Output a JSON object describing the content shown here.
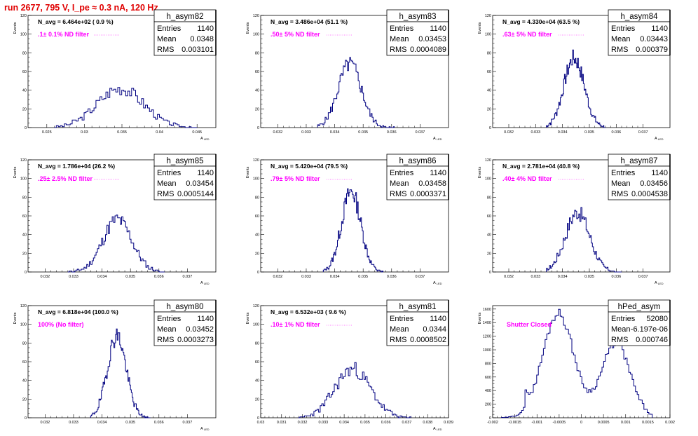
{
  "title": "run 2677,   795 V, I_pe ≈ 0.3 nA, 120 Hz",
  "chart_data": [
    {
      "type": "bar",
      "name": "h_asym82",
      "stats": {
        "entries": "1140",
        "mean": "0.0348",
        "rms": "0.003101"
      },
      "stat_labels": [
        "Entries",
        "Mean",
        "RMS"
      ],
      "navg": "N_avg = 6.464e+02 ( 0.9 %)",
      "filter": ".1± 0.1% ND filter",
      "xlabel": "A_LED",
      "ylabel": "Events",
      "xlim": [
        0.0225,
        0.0475
      ],
      "ylim": [
        0,
        120
      ],
      "xticks": [
        0.025,
        0.03,
        0.035,
        0.04,
        0.045
      ],
      "xtick_labels": [
        "0.025",
        "0.03",
        "0.035",
        "0.04",
        "0.045"
      ],
      "yticks": [
        0,
        20,
        40,
        60,
        80,
        100,
        120
      ],
      "gauss": {
        "mu": 0.0348,
        "sigma": 0.0031,
        "peak": 42,
        "bins": 72,
        "lo": 0.026,
        "hi": 0.045,
        "seed": 3
      }
    },
    {
      "type": "bar",
      "name": "h_asym83",
      "stats": {
        "entries": "1140",
        "mean": "0.03453",
        "rms": "0.0004089"
      },
      "stat_labels": [
        "Entries",
        "Mean",
        "RMS"
      ],
      "navg": "N_avg = 3.486e+04 (51.1 %)",
      "filter": ".50± 5% ND filter",
      "xlabel": "A_LED",
      "ylabel": "Events",
      "xlim": [
        0.0314,
        0.038
      ],
      "ylim": [
        0,
        120
      ],
      "xticks": [
        0.032,
        0.033,
        0.034,
        0.035,
        0.036,
        0.037
      ],
      "xtick_labels": [
        "0.032",
        "0.033",
        "0.034",
        "0.035",
        "0.036",
        "0.037"
      ],
      "yticks": [
        0,
        20,
        40,
        60,
        80,
        100,
        120
      ],
      "gauss": {
        "mu": 0.03453,
        "sigma": 0.00041,
        "peak": 68,
        "bins": 72,
        "lo": 0.0334,
        "hi": 0.0361,
        "seed": 5
      }
    },
    {
      "type": "bar",
      "name": "h_asym84",
      "stats": {
        "entries": "1140",
        "mean": "0.03443",
        "rms": "0.000379"
      },
      "stat_labels": [
        "Entries",
        "Mean",
        "RMS"
      ],
      "navg": "N_avg = 4.330e+04 (63.5 %)",
      "filter": ".63± 5% ND filter",
      "xlabel": "A_LED",
      "ylabel": "Events",
      "xlim": [
        0.0314,
        0.038
      ],
      "ylim": [
        0,
        120
      ],
      "xticks": [
        0.032,
        0.033,
        0.034,
        0.035,
        0.036,
        0.037
      ],
      "xtick_labels": [
        "0.032",
        "0.033",
        "0.034",
        "0.035",
        "0.036",
        "0.037"
      ],
      "yticks": [
        0,
        20,
        40,
        60,
        80,
        100,
        120
      ],
      "gauss": {
        "mu": 0.03443,
        "sigma": 0.00038,
        "peak": 74,
        "bins": 72,
        "lo": 0.0334,
        "hi": 0.0356,
        "seed": 7
      }
    },
    {
      "type": "bar",
      "name": "h_asym85",
      "stats": {
        "entries": "1140",
        "mean": "0.03454",
        "rms": "0.0005144"
      },
      "stat_labels": [
        "Entries",
        "Mean",
        "RMS"
      ],
      "navg": "N_avg = 1.786e+04 (26.2 %)",
      "filter": ".25± 2.5% ND filter",
      "xlabel": "A_LED",
      "ylabel": "Events",
      "xlim": [
        0.0314,
        0.038
      ],
      "ylim": [
        0,
        120
      ],
      "xticks": [
        0.032,
        0.033,
        0.034,
        0.035,
        0.036,
        0.037
      ],
      "xtick_labels": [
        "0.032",
        "0.033",
        "0.034",
        "0.035",
        "0.036",
        "0.037"
      ],
      "yticks": [
        0,
        20,
        40,
        60,
        80,
        100,
        120
      ],
      "gauss": {
        "mu": 0.03454,
        "sigma": 0.00051,
        "peak": 56,
        "bins": 72,
        "lo": 0.0328,
        "hi": 0.0362,
        "seed": 11
      }
    },
    {
      "type": "bar",
      "name": "h_asym86",
      "stats": {
        "entries": "1140",
        "mean": "0.03458",
        "rms": "0.0003371"
      },
      "stat_labels": [
        "Entries",
        "Mean",
        "RMS"
      ],
      "navg": "N_avg = 5.420e+04 (79.5 %)",
      "filter": ".79± 5% ND filter",
      "xlabel": "A_LED",
      "ylabel": "Events",
      "xlim": [
        0.0314,
        0.038
      ],
      "ylim": [
        0,
        120
      ],
      "xticks": [
        0.032,
        0.033,
        0.034,
        0.035,
        0.036,
        0.037
      ],
      "xtick_labels": [
        "0.032",
        "0.033",
        "0.034",
        "0.035",
        "0.036",
        "0.037"
      ],
      "yticks": [
        0,
        20,
        40,
        60,
        80,
        100,
        120
      ],
      "gauss": {
        "mu": 0.03458,
        "sigma": 0.00034,
        "peak": 86,
        "bins": 72,
        "lo": 0.0336,
        "hi": 0.0357,
        "seed": 13
      }
    },
    {
      "type": "bar",
      "name": "h_asym87",
      "stats": {
        "entries": "1140",
        "mean": "0.03456",
        "rms": "0.0004538"
      },
      "stat_labels": [
        "Entries",
        "Mean",
        "RMS"
      ],
      "navg": "N_avg = 2.781e+04 (40.8 %)",
      "filter": ".40± 4% ND filter",
      "xlabel": "A_LED",
      "ylabel": "Events",
      "xlim": [
        0.0314,
        0.038
      ],
      "ylim": [
        0,
        120
      ],
      "xticks": [
        0.032,
        0.033,
        0.034,
        0.035,
        0.036,
        0.037
      ],
      "xtick_labels": [
        "0.032",
        "0.033",
        "0.034",
        "0.035",
        "0.036",
        "0.037"
      ],
      "yticks": [
        0,
        20,
        40,
        60,
        80,
        100,
        120
      ],
      "gauss": {
        "mu": 0.03456,
        "sigma": 0.00045,
        "peak": 64,
        "bins": 72,
        "lo": 0.0334,
        "hi": 0.0362,
        "seed": 17
      }
    },
    {
      "type": "bar",
      "name": "h_asym80",
      "stats": {
        "entries": "1140",
        "mean": "0.03452",
        "rms": "0.0003273"
      },
      "stat_labels": [
        "Entries",
        "Mean",
        "RMS"
      ],
      "navg": "N_avg = 6.818e+04 (100.0 %)",
      "filter": "100% (No filter)",
      "xlabel": "A_LED",
      "ylabel": "Events",
      "xlim": [
        0.0314,
        0.038
      ],
      "ylim": [
        0,
        120
      ],
      "xticks": [
        0.032,
        0.033,
        0.034,
        0.035,
        0.036,
        0.037
      ],
      "xtick_labels": [
        "0.032",
        "0.033",
        "0.034",
        "0.035",
        "0.036",
        "0.037"
      ],
      "yticks": [
        0,
        20,
        40,
        60,
        80,
        100,
        120
      ],
      "gauss": {
        "mu": 0.03452,
        "sigma": 0.00033,
        "peak": 88,
        "bins": 72,
        "lo": 0.0336,
        "hi": 0.0357,
        "seed": 19
      }
    },
    {
      "type": "bar",
      "name": "h_asym81",
      "stats": {
        "entries": "1140",
        "mean": "0.0344",
        "rms": "0.0008502"
      },
      "stat_labels": [
        "Entries",
        "Mean",
        "RMS"
      ],
      "navg": "N_avg = 6.532e+03 ( 9.6 %)",
      "filter": ".10± 1% ND filter",
      "xlabel": "A_LED",
      "ylabel": "Events",
      "xlim": [
        0.03,
        0.039
      ],
      "ylim": [
        0,
        120
      ],
      "xticks": [
        0.03,
        0.031,
        0.032,
        0.033,
        0.034,
        0.035,
        0.036,
        0.037,
        0.038,
        0.039
      ],
      "xtick_labels": [
        "0.03",
        "0.031",
        "0.032",
        "0.033",
        "0.034",
        "0.035",
        "0.036",
        "0.037",
        "0.038",
        "0.039"
      ],
      "yticks": [
        0,
        20,
        40,
        60,
        80,
        100,
        120
      ],
      "gauss": {
        "mu": 0.0344,
        "sigma": 0.00085,
        "peak": 52,
        "bins": 72,
        "lo": 0.0318,
        "hi": 0.0372,
        "seed": 23
      }
    },
    {
      "type": "bar",
      "name": "hPed_asym",
      "stats": {
        "entries": "52080",
        "mean": "-6.197e-06",
        "rms": "0.000746"
      },
      "stat_labels": [
        "Entries",
        "Mean",
        "RMS"
      ],
      "navg": "",
      "filter": "Shutter Closed",
      "xlabel": "",
      "ylabel": "Events",
      "xlim": [
        -0.002,
        0.002
      ],
      "ylim": [
        0,
        1650
      ],
      "xticks": [
        -0.002,
        -0.0015,
        -0.001,
        -0.0005,
        0,
        0.0005,
        0.001,
        0.0015,
        0.002
      ],
      "xtick_labels": [
        "-0.002",
        "-0.0015",
        "-0.001",
        "-0.0005",
        "0",
        "0.0005",
        "0.001",
        "0.0015",
        "0.002"
      ],
      "yticks": [
        0,
        200,
        400,
        600,
        800,
        1000,
        1200,
        1400,
        1600
      ],
      "bimodal": {
        "peaks": [
          {
            "mu": -0.00052,
            "sigma": 0.00035,
            "amp": 1540
          },
          {
            "mu": 0.00078,
            "sigma": 0.00032,
            "amp": 1100
          }
        ],
        "floor": 380,
        "bins": 90,
        "lo": -0.0018,
        "hi": 0.0016,
        "seed": 29
      }
    }
  ]
}
